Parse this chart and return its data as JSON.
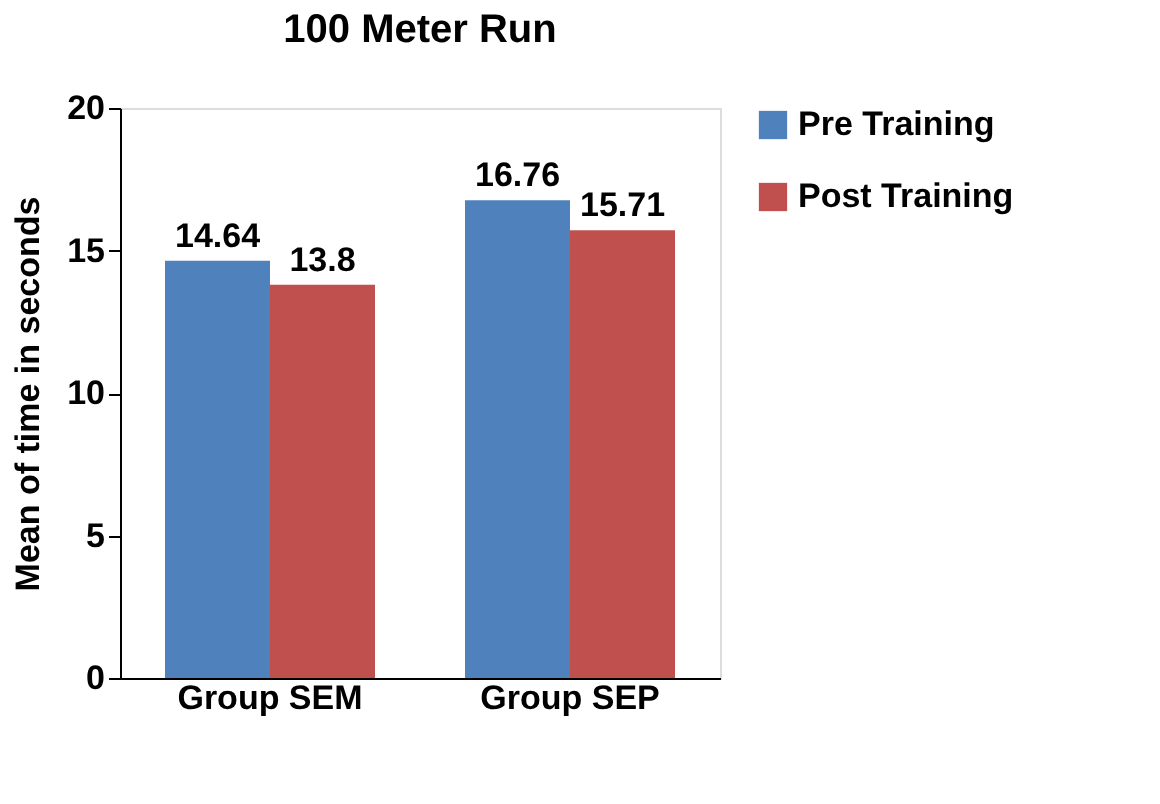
{
  "chart_data": {
    "type": "bar",
    "title": "100 Meter Run",
    "ylabel": "Mean of time in seconds",
    "categories": [
      "Group SEM",
      "Group SEP"
    ],
    "series": [
      {
        "name": "Pre Training",
        "color": "#4f81bd",
        "values": [
          14.64,
          16.76
        ]
      },
      {
        "name": "Post Training",
        "color": "#c0504d",
        "values": [
          13.8,
          15.71
        ]
      }
    ],
    "ylim": [
      0,
      20
    ],
    "yticks": [
      0,
      5,
      10,
      15,
      20
    ],
    "grid": false,
    "legend": "right",
    "data_labels": true
  }
}
